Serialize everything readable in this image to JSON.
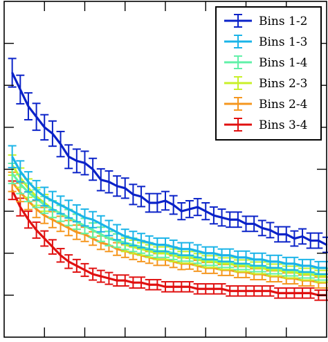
{
  "chart_data": {
    "type": "line",
    "title": "",
    "xlabel": "",
    "ylabel": "",
    "x": [
      1,
      2,
      3,
      4,
      5,
      6,
      7,
      8,
      9,
      10,
      11,
      12,
      13,
      14,
      15,
      16,
      17,
      18,
      19,
      20,
      21,
      22,
      23,
      24,
      25,
      26,
      27,
      28,
      29,
      30,
      31,
      32,
      33,
      34,
      35,
      36,
      37,
      38,
      39,
      40
    ],
    "xlim": [
      0,
      40
    ],
    "ylim": [
      0,
      8
    ],
    "grid": false,
    "legend_position": "top-right",
    "error_bars": true,
    "series": [
      {
        "name": "Bins 1-2",
        "color": "#0a22c8",
        "values": [
          6.3,
          5.9,
          5.5,
          5.25,
          5.0,
          4.85,
          4.6,
          4.3,
          4.2,
          4.15,
          4.0,
          3.75,
          3.7,
          3.6,
          3.55,
          3.4,
          3.35,
          3.2,
          3.2,
          3.25,
          3.15,
          3.0,
          3.05,
          3.1,
          3.0,
          2.9,
          2.85,
          2.8,
          2.8,
          2.7,
          2.7,
          2.6,
          2.55,
          2.45,
          2.45,
          2.35,
          2.4,
          2.3,
          2.3,
          2.2
        ],
        "errors": [
          0.34,
          0.34,
          0.32,
          0.32,
          0.3,
          0.3,
          0.3,
          0.28,
          0.28,
          0.28,
          0.26,
          0.26,
          0.26,
          0.24,
          0.24,
          0.24,
          0.24,
          0.22,
          0.22,
          0.22,
          0.22,
          0.2,
          0.2,
          0.2,
          0.2,
          0.2,
          0.2,
          0.18,
          0.18,
          0.18,
          0.18,
          0.18,
          0.18,
          0.18,
          0.18,
          0.18,
          0.18,
          0.18,
          0.18,
          0.18
        ]
      },
      {
        "name": "Bins 1-3",
        "color": "#1ab4e8",
        "values": [
          4.3,
          3.95,
          3.7,
          3.5,
          3.35,
          3.25,
          3.15,
          3.05,
          2.95,
          2.85,
          2.8,
          2.7,
          2.6,
          2.5,
          2.4,
          2.35,
          2.3,
          2.25,
          2.2,
          2.2,
          2.15,
          2.1,
          2.1,
          2.05,
          2.0,
          2.0,
          1.95,
          1.95,
          1.9,
          1.9,
          1.85,
          1.85,
          1.8,
          1.8,
          1.75,
          1.75,
          1.7,
          1.7,
          1.65,
          1.65
        ],
        "errors": [
          0.26,
          0.25,
          0.24,
          0.23,
          0.22,
          0.22,
          0.21,
          0.21,
          0.2,
          0.2,
          0.19,
          0.19,
          0.18,
          0.18,
          0.17,
          0.17,
          0.17,
          0.16,
          0.16,
          0.16,
          0.16,
          0.15,
          0.15,
          0.15,
          0.15,
          0.15,
          0.15,
          0.15,
          0.15,
          0.15,
          0.15,
          0.15,
          0.15,
          0.15,
          0.15,
          0.15,
          0.15,
          0.15,
          0.15,
          0.15
        ]
      },
      {
        "name": "Bins 1-4",
        "color": "#60f0a8",
        "values": [
          3.9,
          3.65,
          3.45,
          3.3,
          3.15,
          3.05,
          2.95,
          2.85,
          2.75,
          2.65,
          2.55,
          2.45,
          2.35,
          2.3,
          2.25,
          2.2,
          2.15,
          2.1,
          2.05,
          2.05,
          2.0,
          1.95,
          1.95,
          1.9,
          1.85,
          1.85,
          1.8,
          1.8,
          1.75,
          1.75,
          1.7,
          1.7,
          1.65,
          1.65,
          1.6,
          1.6,
          1.55,
          1.55,
          1.5,
          1.5
        ],
        "errors": [
          0.24,
          0.23,
          0.22,
          0.21,
          0.2,
          0.2,
          0.19,
          0.19,
          0.18,
          0.18,
          0.17,
          0.17,
          0.17,
          0.16,
          0.16,
          0.16,
          0.15,
          0.15,
          0.15,
          0.15,
          0.15,
          0.14,
          0.14,
          0.14,
          0.14,
          0.14,
          0.14,
          0.14,
          0.14,
          0.14,
          0.14,
          0.14,
          0.14,
          0.14,
          0.14,
          0.14,
          0.14,
          0.14,
          0.14,
          0.14
        ]
      },
      {
        "name": "Bins 2-3",
        "color": "#c8f028",
        "values": [
          4.1,
          3.8,
          3.55,
          3.35,
          3.2,
          3.05,
          2.95,
          2.85,
          2.75,
          2.65,
          2.55,
          2.45,
          2.35,
          2.3,
          2.2,
          2.15,
          2.1,
          2.05,
          2.0,
          2.0,
          1.95,
          1.9,
          1.9,
          1.85,
          1.8,
          1.8,
          1.75,
          1.75,
          1.7,
          1.7,
          1.65,
          1.65,
          1.6,
          1.6,
          1.55,
          1.55,
          1.5,
          1.5,
          1.45,
          1.45
        ],
        "errors": [
          0.24,
          0.23,
          0.22,
          0.21,
          0.2,
          0.2,
          0.19,
          0.19,
          0.18,
          0.18,
          0.17,
          0.17,
          0.17,
          0.16,
          0.16,
          0.16,
          0.15,
          0.15,
          0.15,
          0.15,
          0.15,
          0.14,
          0.14,
          0.14,
          0.14,
          0.14,
          0.14,
          0.14,
          0.14,
          0.14,
          0.14,
          0.14,
          0.14,
          0.14,
          0.14,
          0.14,
          0.14,
          0.14,
          0.14,
          0.14
        ]
      },
      {
        "name": "Bins 2-4",
        "color": "#f5961e",
        "values": [
          3.7,
          3.45,
          3.25,
          3.05,
          2.9,
          2.8,
          2.7,
          2.6,
          2.5,
          2.45,
          2.35,
          2.25,
          2.2,
          2.1,
          2.05,
          2.0,
          1.95,
          1.9,
          1.85,
          1.85,
          1.8,
          1.75,
          1.75,
          1.7,
          1.65,
          1.65,
          1.6,
          1.6,
          1.55,
          1.55,
          1.5,
          1.5,
          1.45,
          1.45,
          1.4,
          1.4,
          1.35,
          1.35,
          1.3,
          1.3
        ],
        "errors": [
          0.23,
          0.22,
          0.21,
          0.2,
          0.19,
          0.19,
          0.18,
          0.18,
          0.17,
          0.17,
          0.16,
          0.16,
          0.16,
          0.15,
          0.15,
          0.15,
          0.15,
          0.14,
          0.14,
          0.14,
          0.14,
          0.14,
          0.13,
          0.13,
          0.13,
          0.13,
          0.13,
          0.13,
          0.13,
          0.13,
          0.13,
          0.13,
          0.13,
          0.13,
          0.13,
          0.13,
          0.13,
          0.13,
          0.13,
          0.13
        ]
      },
      {
        "name": "Bins 3-4",
        "color": "#e01010",
        "values": [
          3.5,
          3.1,
          2.8,
          2.55,
          2.35,
          2.15,
          1.95,
          1.8,
          1.7,
          1.6,
          1.5,
          1.45,
          1.4,
          1.35,
          1.35,
          1.3,
          1.3,
          1.25,
          1.25,
          1.2,
          1.2,
          1.2,
          1.2,
          1.15,
          1.15,
          1.15,
          1.15,
          1.1,
          1.1,
          1.1,
          1.1,
          1.1,
          1.1,
          1.05,
          1.05,
          1.05,
          1.05,
          1.05,
          1.0,
          1.0
        ],
        "errors": [
          0.22,
          0.21,
          0.2,
          0.19,
          0.18,
          0.17,
          0.16,
          0.16,
          0.15,
          0.15,
          0.14,
          0.14,
          0.14,
          0.13,
          0.13,
          0.13,
          0.13,
          0.12,
          0.12,
          0.12,
          0.12,
          0.12,
          0.12,
          0.12,
          0.12,
          0.12,
          0.12,
          0.12,
          0.12,
          0.12,
          0.12,
          0.12,
          0.12,
          0.12,
          0.12,
          0.12,
          0.12,
          0.12,
          0.12,
          0.12
        ]
      }
    ]
  }
}
